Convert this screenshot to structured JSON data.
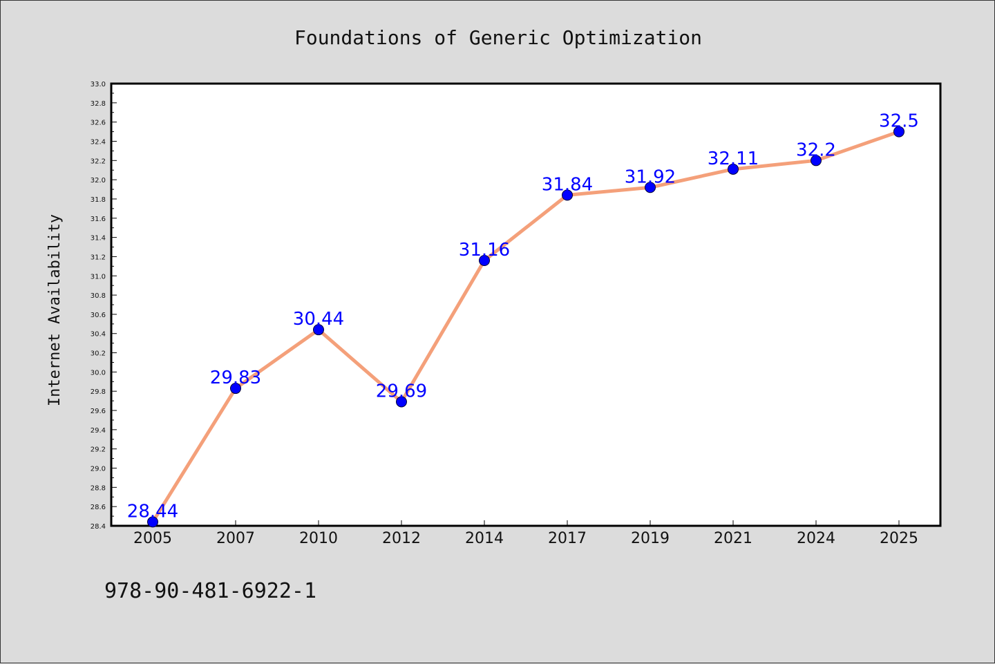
{
  "chart_data": {
    "type": "line",
    "title": "Foundations of Generic Optimization",
    "xlabel": "",
    "ylabel": "Internet Availability",
    "categories": [
      "2005",
      "2007",
      "2010",
      "2012",
      "2014",
      "2017",
      "2019",
      "2021",
      "2024",
      "2025"
    ],
    "values": [
      28.44,
      29.83,
      30.44,
      29.69,
      31.16,
      31.84,
      31.92,
      32.11,
      32.2,
      32.5
    ],
    "data_labels": [
      "28.44",
      "29.83",
      "30.44",
      "29.69",
      "31.16",
      "31.84",
      "31.92",
      "32.11",
      "32.2",
      "32.5"
    ],
    "ylim": [
      28.4,
      33.0
    ],
    "yticks": [
      "28.4",
      "28.6",
      "28.8",
      "29.0",
      "29.2",
      "29.4",
      "29.6",
      "29.8",
      "30.0",
      "30.2",
      "30.4",
      "30.6",
      "30.8",
      "31.0",
      "31.2",
      "31.4",
      "31.6",
      "31.8",
      "32.0",
      "32.2",
      "32.4",
      "32.6",
      "32.8",
      "33.0"
    ],
    "grid": false,
    "legend": "none",
    "line_color": "#f4a07a",
    "marker_color": "#0000ff",
    "label_color": "#0000ff"
  },
  "footer": {
    "text": "978-90-481-6922-1"
  }
}
